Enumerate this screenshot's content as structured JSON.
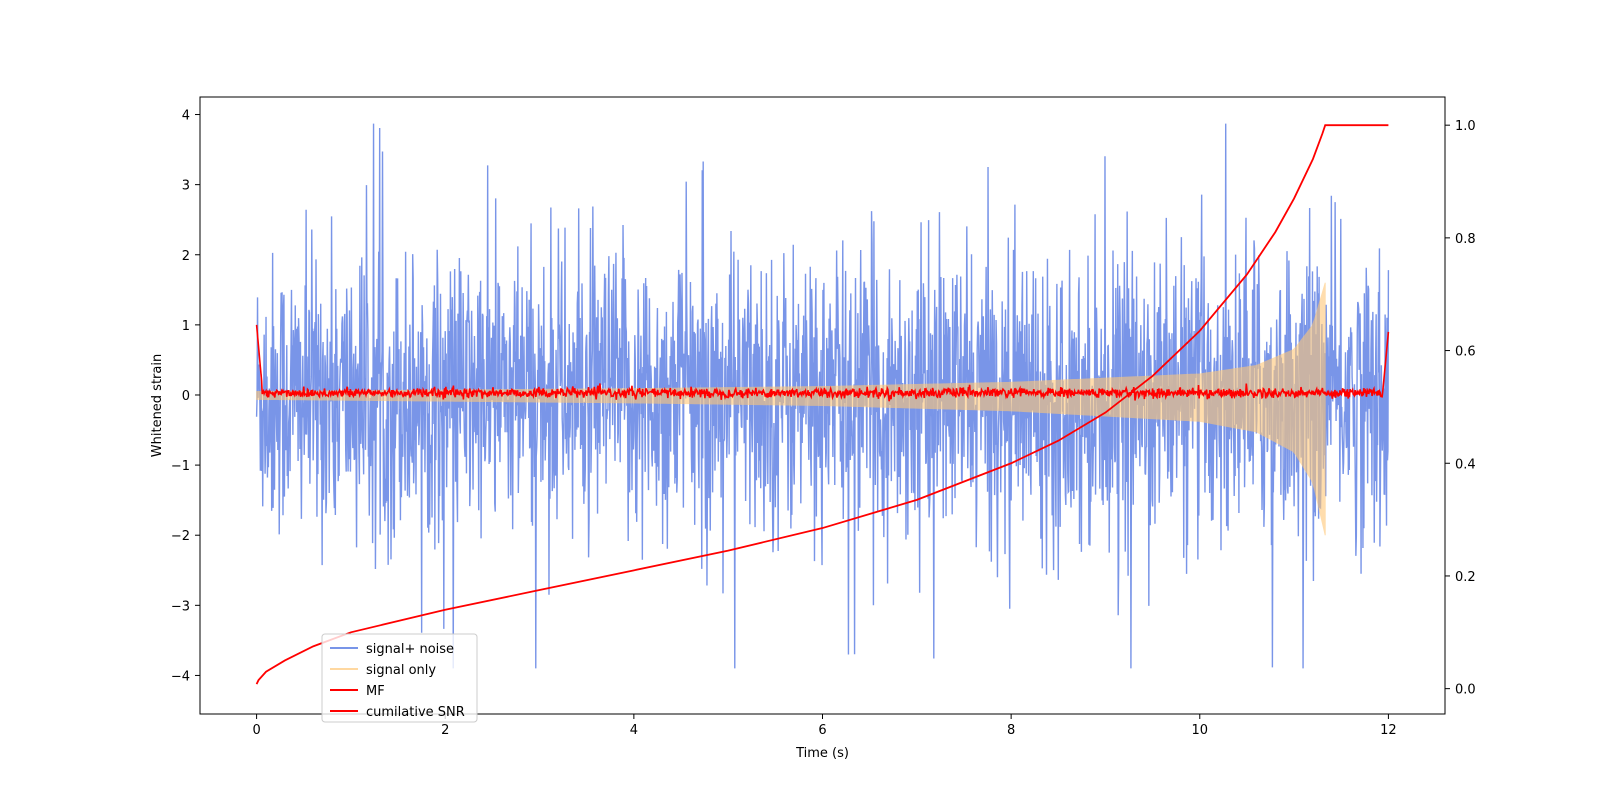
{
  "chart_data": {
    "type": "line",
    "title": "",
    "xlabel": "Time (s)",
    "ylabel": "Whitened strain",
    "ylabel_right": "",
    "xlim": [
      -0.6,
      12.6
    ],
    "ylim": [
      -4.55,
      4.25
    ],
    "ylim_right": [
      -0.045,
      1.05
    ],
    "xticks": [
      0,
      2,
      4,
      6,
      8,
      10,
      12
    ],
    "xtick_labels": [
      "0",
      "2",
      "4",
      "6",
      "8",
      "10",
      "12"
    ],
    "yticks": [
      -4,
      -3,
      -2,
      -1,
      0,
      1,
      2,
      3,
      4
    ],
    "ytick_labels": [
      "−4",
      "−3",
      "−2",
      "−1",
      "0",
      "1",
      "2",
      "3",
      "4"
    ],
    "yticks_right": [
      0.0,
      0.2,
      0.4,
      0.6,
      0.8,
      1.0
    ],
    "ytick_labels_right": [
      "0.0",
      "0.2",
      "0.4",
      "0.6",
      "0.8",
      "1.0"
    ],
    "grid": false,
    "legend_position": "lower-left",
    "series": [
      {
        "name": "signal+ noise",
        "axis": "left",
        "color": "#6a8ae6",
        "opacity": 0.9,
        "description_values": {
          "x_range": [
            0,
            12
          ],
          "typical_range": [
            -2.4,
            2.4
          ],
          "extremes": [
            -3.9,
            3.87
          ]
        }
      },
      {
        "name": "signal only",
        "axis": "left",
        "color": "#ffc878",
        "opacity": 0.6,
        "description_values": {
          "x_range": [
            0,
            11.33
          ],
          "amplitude_envelope": [
            [
              0,
              0.05
            ],
            [
              2,
              0.07
            ],
            [
              4,
              0.09
            ],
            [
              6,
              0.12
            ],
            [
              8,
              0.18
            ],
            [
              9,
              0.24
            ],
            [
              10,
              0.3
            ],
            [
              10.6,
              0.42
            ],
            [
              11.0,
              0.65
            ],
            [
              11.2,
              1.0
            ],
            [
              11.33,
              1.6
            ]
          ]
        }
      },
      {
        "name": "MF",
        "axis": "left",
        "color": "#ff0000",
        "opacity": 1.0,
        "description_values": {
          "x_range": [
            0,
            12
          ],
          "start_value": 1.0,
          "end_value": 0.9,
          "typical_range": [
            -0.08,
            0.14
          ]
        }
      },
      {
        "name": "cumilative SNR",
        "axis": "right",
        "color": "#ff0000",
        "opacity": 1.0,
        "x": [
          0,
          0.02,
          0.1,
          0.3,
          0.6,
          1.0,
          1.5,
          2.0,
          3.0,
          4.0,
          5.0,
          6.0,
          7.0,
          8.0,
          8.5,
          9.0,
          9.5,
          10.0,
          10.5,
          10.8,
          11.0,
          11.2,
          11.3,
          11.33,
          12.0
        ],
        "y": [
          0.008,
          0.015,
          0.03,
          0.05,
          0.075,
          0.1,
          0.12,
          0.14,
          0.175,
          0.21,
          0.245,
          0.285,
          0.335,
          0.4,
          0.44,
          0.49,
          0.555,
          0.635,
          0.735,
          0.81,
          0.87,
          0.94,
          0.985,
          1.0,
          1.0
        ]
      }
    ]
  }
}
